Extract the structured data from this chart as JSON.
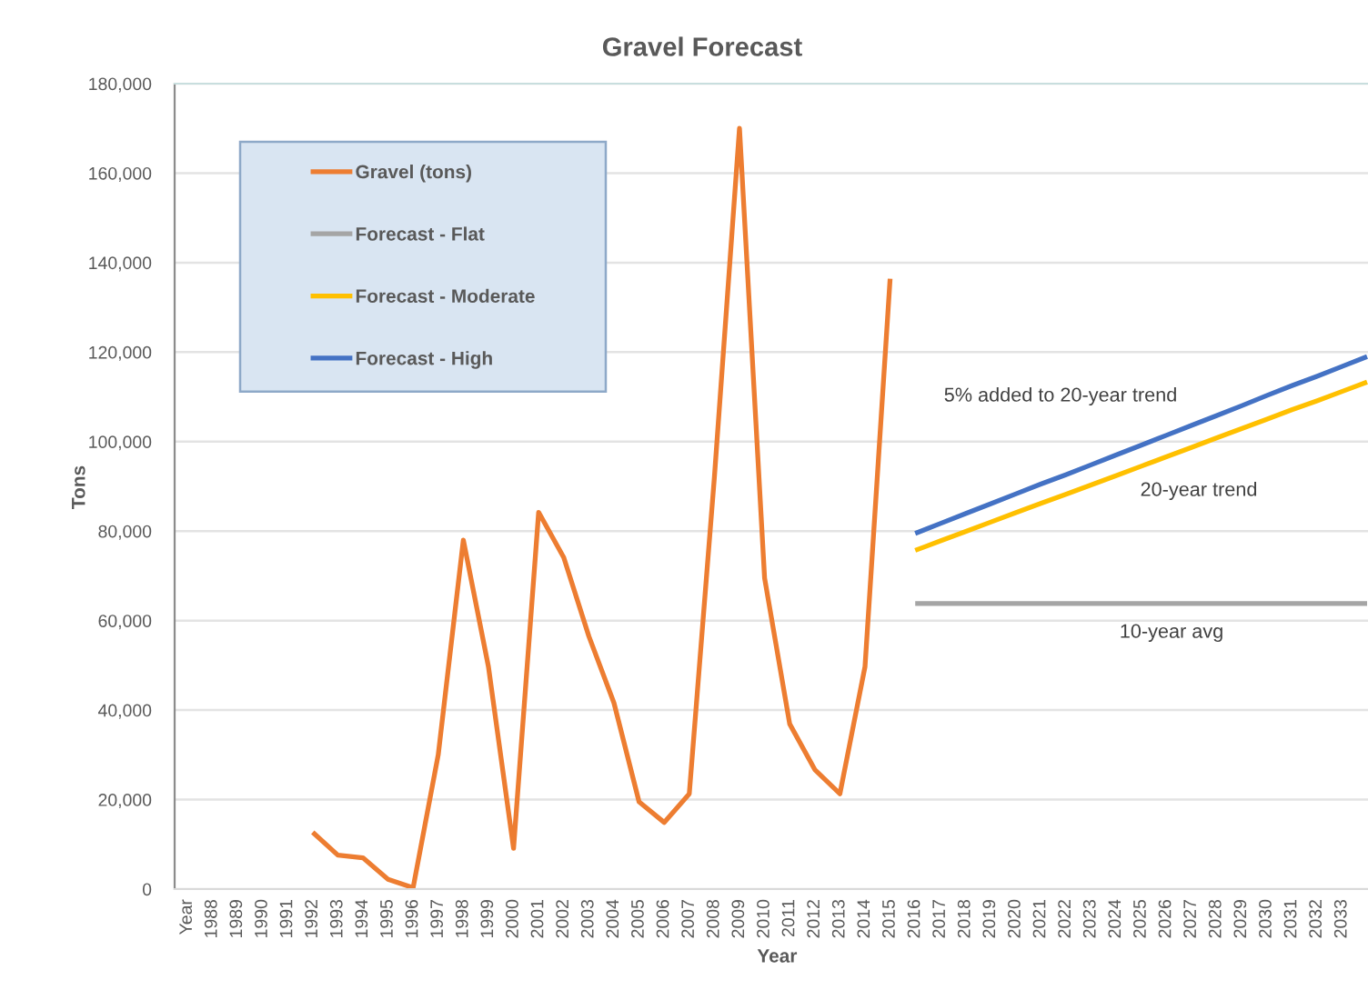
{
  "chart_data": {
    "type": "line",
    "title": "Gravel Forecast",
    "xlabel": "Year",
    "ylabel": "Tons",
    "categories": [
      "Year",
      "1988",
      "1989",
      "1990",
      "1991",
      "1992",
      "1993",
      "1994",
      "1995",
      "1996",
      "1997",
      "1998",
      "1999",
      "2000",
      "2001",
      "2002",
      "2003",
      "2004",
      "2005",
      "2006",
      "2007",
      "2008",
      "2009",
      "2010",
      "2011",
      "2012",
      "2013",
      "2014",
      "2015",
      "2016",
      "2017",
      "2018",
      "2019",
      "2020",
      "2021",
      "2022",
      "2023",
      "2024",
      "2025",
      "2026",
      "2027",
      "2028",
      "2029",
      "2030",
      "2031",
      "2032",
      "2033",
      null
    ],
    "series": [
      {
        "name": "Gravel (tons)",
        "color": "#ed7d31",
        "values": [
          null,
          null,
          null,
          null,
          null,
          12700,
          7600,
          7000,
          2200,
          300,
          30000,
          78000,
          49700,
          9100,
          84200,
          74100,
          56500,
          41600,
          19500,
          14900,
          21300,
          92000,
          170000,
          69500,
          36900,
          26700,
          21300,
          49700,
          136400,
          null,
          null,
          null,
          null,
          null,
          null,
          null,
          null,
          null,
          null,
          null,
          null,
          null,
          null,
          null,
          null,
          null,
          null,
          null
        ]
      },
      {
        "name": "Forecast - Flat",
        "color": "#a5a5a5",
        "values": [
          null,
          null,
          null,
          null,
          null,
          null,
          null,
          null,
          null,
          null,
          null,
          null,
          null,
          null,
          null,
          null,
          null,
          null,
          null,
          null,
          null,
          null,
          null,
          null,
          null,
          null,
          null,
          null,
          null,
          63800,
          63800,
          63800,
          63800,
          63800,
          63800,
          63800,
          63800,
          63800,
          63800,
          63800,
          63800,
          63800,
          63800,
          63800,
          63800,
          63800,
          63800,
          63800
        ]
      },
      {
        "name": "Forecast - Moderate",
        "color": "#ffc000",
        "values": [
          null,
          null,
          null,
          null,
          null,
          null,
          null,
          null,
          null,
          null,
          null,
          null,
          null,
          null,
          null,
          null,
          null,
          null,
          null,
          null,
          null,
          null,
          null,
          null,
          null,
          null,
          null,
          null,
          null,
          75700,
          77800,
          79900,
          82000,
          84100,
          86200,
          88200,
          90300,
          92400,
          94500,
          96600,
          98700,
          100800,
          102900,
          105000,
          107100,
          109100,
          111200,
          113300
        ]
      },
      {
        "name": "Forecast - High",
        "color": "#4472c4",
        "values": [
          null,
          null,
          null,
          null,
          null,
          null,
          null,
          null,
          null,
          null,
          null,
          null,
          null,
          null,
          null,
          null,
          null,
          null,
          null,
          null,
          null,
          null,
          null,
          null,
          null,
          null,
          null,
          null,
          null,
          79500,
          81700,
          83900,
          86100,
          88300,
          90500,
          92600,
          94800,
          97000,
          99200,
          101400,
          103600,
          105800,
          108000,
          110300,
          112500,
          114600,
          116800,
          119000
        ]
      }
    ],
    "ylim": [
      0,
      180000
    ],
    "yticks": [
      {
        "value": 0,
        "label": "0"
      },
      {
        "value": 20000,
        "label": "20,000"
      },
      {
        "value": 40000,
        "label": "40,000"
      },
      {
        "value": 60000,
        "label": "60,000"
      },
      {
        "value": 80000,
        "label": "80,000"
      },
      {
        "value": 100000,
        "label": "100,000"
      },
      {
        "value": 120000,
        "label": "120,000"
      },
      {
        "value": 140000,
        "label": "140,000"
      },
      {
        "value": 160000,
        "label": "160,000"
      },
      {
        "value": 180000,
        "label": "180,000"
      }
    ],
    "annotations": [
      "5% added to 20-year trend",
      "20-year trend",
      "10-year avg"
    ],
    "grid": "y",
    "legend": "top left",
    "marker": "none",
    "line_style": "solid"
  }
}
